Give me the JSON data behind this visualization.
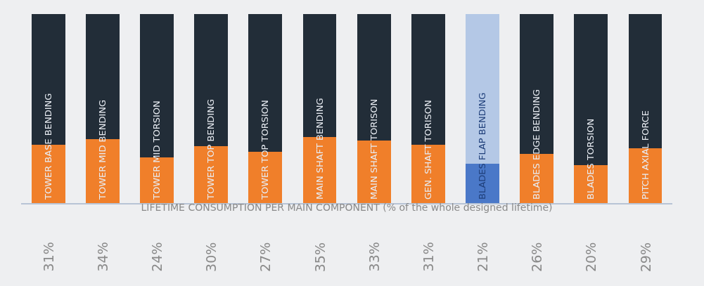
{
  "chart_data": {
    "type": "bar",
    "stacked": true,
    "xlabel": "LIFETIME CONSUMPTION PER MAIN COMPONENT (% of the whole designed lifetime)",
    "categories": [
      "TOWER BASE BENDING",
      "TOWER MID BENDING",
      "TOWER MID TORSION",
      "TOWER TOP BENDING",
      "TOWER TOP TORSION",
      "MAIN SHAFT BENDING",
      "MAIN SHAFT TORISON",
      "GEN. SHAFT TORISON",
      "BLADES FLAP BENDING",
      "BLADES EDGE BENDING",
      "BLADES TORSION",
      "PITCH AXIAL FORCE"
    ],
    "series": [
      {
        "colors": [
          "#f07f2a",
          "#f07f2a",
          "#f07f2a",
          "#f07f2a",
          "#f07f2a",
          "#f07f2a",
          "#f07f2a",
          "#f07f2a",
          "#4a78c8",
          "#f07f2a",
          "#f07f2a",
          "#f07f2a"
        ],
        "values": [
          31,
          34,
          24,
          30,
          27,
          35,
          33,
          31,
          21,
          26,
          20,
          29
        ],
        "value_labels": [
          "31%",
          "34%",
          "24%",
          "30%",
          "27%",
          "35%",
          "33%",
          "31%",
          "21%",
          "26%",
          "20%",
          "29%"
        ]
      },
      {
        "colors": [
          "#222d38",
          "#222d38",
          "#222d38",
          "#222d38",
          "#222d38",
          "#222d38",
          "#222d38",
          "#222d38",
          "#b4c8e6",
          "#222d38",
          "#222d38",
          "#222d38"
        ],
        "values": [
          69,
          66,
          76,
          70,
          73,
          65,
          67,
          69,
          79,
          74,
          80,
          71
        ]
      }
    ],
    "ylim": [
      0,
      100
    ],
    "tick_labels": "x",
    "grid": false
  }
}
